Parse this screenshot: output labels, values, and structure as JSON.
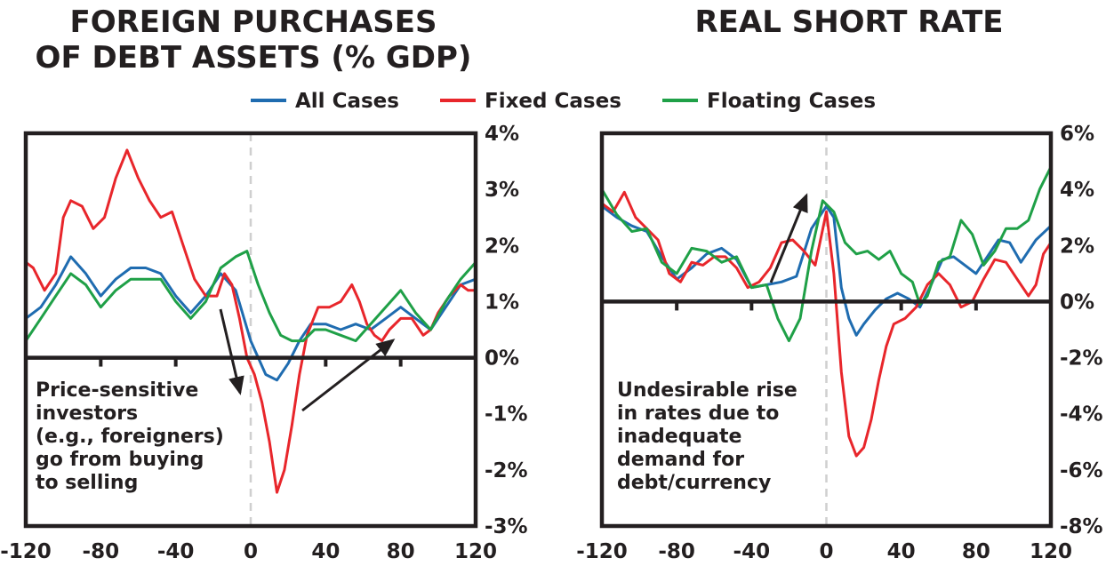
{
  "legend": {
    "items": [
      {
        "label": "All Cases",
        "color": "#1f6cb0"
      },
      {
        "label": "Fixed Cases",
        "color": "#e8262b"
      },
      {
        "label": "Floating Cases",
        "color": "#1fa047"
      }
    ]
  },
  "chart_data": [
    {
      "type": "line",
      "title_lines": [
        "FOREIGN PURCHASES",
        "OF DEBT ASSETS (% GDP)"
      ],
      "xlim": [
        -120,
        120
      ],
      "ylim": [
        -3,
        4
      ],
      "x_ticks": [
        -120,
        -80,
        -40,
        0,
        40,
        80,
        120
      ],
      "x_tick_labels": [
        "-120",
        "-80",
        "-40",
        "0",
        "40",
        "80",
        "120"
      ],
      "y_ticks": [
        4,
        3,
        2,
        1,
        0,
        -1,
        -2,
        -3
      ],
      "y_tick_labels": [
        "4%",
        "3%",
        "2%",
        "1%",
        "0%",
        "-1%",
        "-2%",
        "-3%"
      ],
      "vline_x": 0,
      "annotation_lines": [
        "Price-sensitive",
        "investors",
        "(e.g., foreigners)",
        "go from buying",
        "to selling"
      ],
      "series": [
        {
          "name": "All Cases",
          "color": "#1f6cb0",
          "x": [
            -120,
            -112,
            -104,
            -96,
            -88,
            -80,
            -72,
            -64,
            -56,
            -48,
            -40,
            -32,
            -24,
            -16,
            -8,
            0,
            8,
            14,
            20,
            26,
            32,
            40,
            48,
            56,
            64,
            72,
            80,
            88,
            96,
            104,
            112,
            120
          ],
          "y": [
            0.7,
            0.9,
            1.3,
            1.8,
            1.5,
            1.1,
            1.4,
            1.6,
            1.6,
            1.5,
            1.1,
            0.8,
            1.1,
            1.5,
            1.2,
            0.3,
            -0.3,
            -0.4,
            -0.1,
            0.3,
            0.6,
            0.6,
            0.5,
            0.6,
            0.5,
            0.7,
            0.9,
            0.7,
            0.5,
            0.9,
            1.3,
            1.4
          ]
        },
        {
          "name": "Fixed Cases",
          "color": "#e8262b",
          "x": [
            -120,
            -116,
            -110,
            -104,
            -100,
            -96,
            -90,
            -84,
            -78,
            -72,
            -66,
            -60,
            -54,
            -48,
            -42,
            -36,
            -30,
            -24,
            -18,
            -14,
            -10,
            -6,
            -2,
            2,
            6,
            10,
            14,
            18,
            22,
            26,
            30,
            36,
            42,
            48,
            54,
            58,
            62,
            66,
            70,
            74,
            80,
            86,
            92,
            96,
            100,
            106,
            112,
            116,
            120
          ],
          "y": [
            1.7,
            1.6,
            1.2,
            1.5,
            2.5,
            2.8,
            2.7,
            2.3,
            2.5,
            3.2,
            3.7,
            3.2,
            2.8,
            2.5,
            2.6,
            2.0,
            1.4,
            1.1,
            1.1,
            1.5,
            1.3,
            0.7,
            0.0,
            -0.3,
            -0.8,
            -1.5,
            -2.4,
            -2.0,
            -1.2,
            -0.3,
            0.4,
            0.9,
            0.9,
            1.0,
            1.3,
            1.0,
            0.6,
            0.4,
            0.3,
            0.5,
            0.7,
            0.7,
            0.4,
            0.5,
            0.8,
            1.1,
            1.3,
            1.2,
            1.2
          ]
        },
        {
          "name": "Floating Cases",
          "color": "#1fa047",
          "x": [
            -120,
            -112,
            -104,
            -96,
            -88,
            -80,
            -72,
            -64,
            -56,
            -48,
            -40,
            -32,
            -24,
            -16,
            -8,
            -2,
            4,
            10,
            16,
            22,
            28,
            34,
            40,
            48,
            56,
            64,
            72,
            80,
            88,
            96,
            104,
            112,
            120
          ],
          "y": [
            0.3,
            0.7,
            1.1,
            1.5,
            1.3,
            0.9,
            1.2,
            1.4,
            1.4,
            1.4,
            1.0,
            0.7,
            1.0,
            1.6,
            1.8,
            1.9,
            1.3,
            0.8,
            0.4,
            0.3,
            0.3,
            0.5,
            0.5,
            0.4,
            0.3,
            0.6,
            0.9,
            1.2,
            0.8,
            0.5,
            1.0,
            1.4,
            1.7
          ]
        }
      ]
    },
    {
      "type": "line",
      "title_lines": [
        "REAL SHORT RATE"
      ],
      "xlim": [
        -120,
        120
      ],
      "ylim": [
        -8,
        6
      ],
      "x_ticks": [
        -120,
        -80,
        -40,
        0,
        40,
        80,
        120
      ],
      "x_tick_labels": [
        "-120",
        "-80",
        "-40",
        "0",
        "40",
        "80",
        "120"
      ],
      "y_ticks": [
        6,
        4,
        2,
        0,
        -2,
        -4,
        -6,
        -8
      ],
      "y_tick_labels": [
        "6%",
        "4%",
        "2%",
        "0%",
        "-2%",
        "-4%",
        "-6%",
        "-8%"
      ],
      "vline_x": 0,
      "annotation_lines": [
        "Undesirable rise",
        "in rates due to",
        "inadequate",
        "demand for",
        "debt/currency"
      ],
      "series": [
        {
          "name": "All Cases",
          "color": "#1f6cb0",
          "x": [
            -120,
            -112,
            -104,
            -96,
            -88,
            -80,
            -72,
            -64,
            -56,
            -48,
            -40,
            -32,
            -24,
            -16,
            -8,
            0,
            4,
            8,
            12,
            16,
            20,
            26,
            32,
            38,
            44,
            50,
            56,
            62,
            68,
            74,
            80,
            86,
            92,
            98,
            104,
            112,
            120
          ],
          "y": [
            3.4,
            3.0,
            2.7,
            2.5,
            1.6,
            0.8,
            1.2,
            1.7,
            1.9,
            1.5,
            0.5,
            0.6,
            0.7,
            0.9,
            2.6,
            3.4,
            3.0,
            0.5,
            -0.6,
            -1.2,
            -0.8,
            -0.3,
            0.1,
            0.3,
            0.1,
            -0.2,
            0.6,
            1.5,
            1.6,
            1.3,
            1.0,
            1.6,
            2.2,
            2.1,
            1.4,
            2.2,
            2.7
          ]
        },
        {
          "name": "Fixed Cases",
          "color": "#e8262b",
          "x": [
            -120,
            -114,
            -108,
            -102,
            -96,
            -90,
            -84,
            -78,
            -72,
            -66,
            -60,
            -54,
            -48,
            -42,
            -36,
            -30,
            -24,
            -18,
            -12,
            -6,
            0,
            4,
            8,
            12,
            16,
            20,
            24,
            28,
            32,
            36,
            42,
            48,
            54,
            60,
            66,
            72,
            78,
            84,
            90,
            96,
            102,
            108,
            112,
            116,
            120
          ],
          "y": [
            3.5,
            3.2,
            3.9,
            3.0,
            2.6,
            2.2,
            1.0,
            0.7,
            1.4,
            1.3,
            1.6,
            1.6,
            1.2,
            0.5,
            0.7,
            1.2,
            2.1,
            2.2,
            1.8,
            1.3,
            3.2,
            1.0,
            -2.5,
            -4.8,
            -5.5,
            -5.2,
            -4.2,
            -2.8,
            -1.6,
            -0.8,
            -0.6,
            -0.2,
            0.6,
            1.0,
            0.6,
            -0.2,
            0.0,
            0.8,
            1.5,
            1.4,
            0.8,
            0.2,
            0.6,
            1.7,
            2.1
          ]
        },
        {
          "name": "Floating Cases",
          "color": "#1fa047",
          "x": [
            -120,
            -112,
            -104,
            -96,
            -88,
            -80,
            -72,
            -64,
            -56,
            -48,
            -40,
            -32,
            -26,
            -20,
            -14,
            -8,
            -2,
            4,
            10,
            16,
            22,
            28,
            34,
            40,
            46,
            50,
            54,
            60,
            66,
            72,
            78,
            84,
            90,
            96,
            102,
            108,
            114,
            120
          ],
          "y": [
            4.0,
            3.1,
            2.5,
            2.6,
            1.4,
            1.0,
            1.9,
            1.8,
            1.4,
            1.6,
            0.5,
            0.6,
            -0.6,
            -1.4,
            -0.6,
            1.8,
            3.6,
            3.2,
            2.1,
            1.7,
            1.8,
            1.5,
            1.8,
            1.0,
            0.7,
            -0.1,
            0.2,
            1.4,
            1.6,
            2.9,
            2.4,
            1.3,
            1.8,
            2.6,
            2.6,
            2.9,
            4.0,
            4.8
          ]
        }
      ]
    }
  ]
}
